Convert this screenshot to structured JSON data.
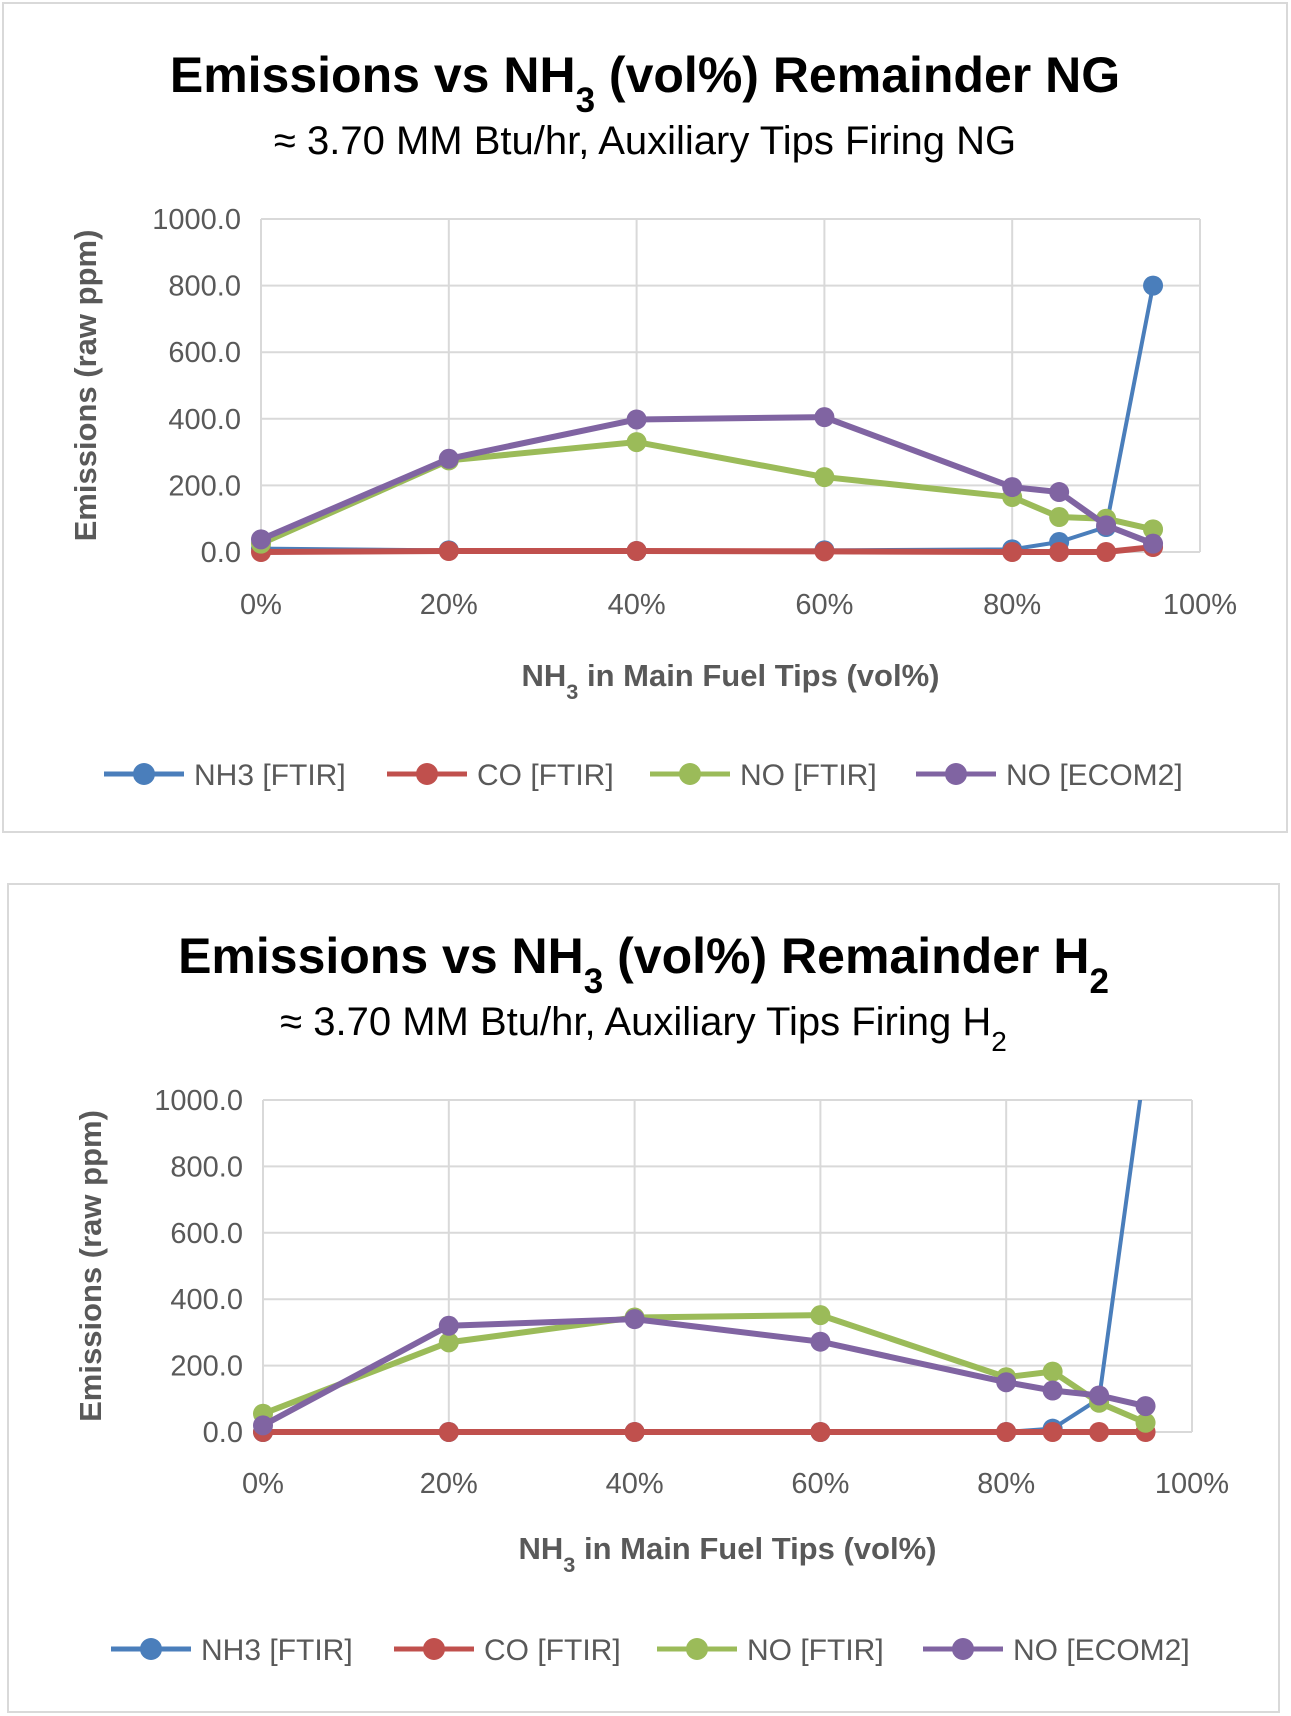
{
  "chart_data": [
    {
      "type": "line",
      "title_parts": [
        "Emissions vs NH",
        "3",
        " (vol%) Remainder NG"
      ],
      "subtitle_parts": [
        "≈ 3.70 MM Btu/hr, Auxiliary Tips Firing NG",
        ""
      ],
      "xlabel_parts": [
        "NH",
        "3",
        " in Main Fuel Tips (vol%)"
      ],
      "ylabel": "Emissions (raw ppm)",
      "xlim": [
        0,
        1
      ],
      "ylim": [
        0,
        1000
      ],
      "xticks": [
        "0%",
        "20%",
        "40%",
        "60%",
        "80%",
        "100%"
      ],
      "yticks": [
        "0.0",
        "200.0",
        "400.0",
        "600.0",
        "800.0",
        "1000.0"
      ],
      "grid": true,
      "legend_position": "bottom",
      "x": [
        0,
        0.2,
        0.4,
        0.6,
        0.8,
        0.85,
        0.9,
        0.95
      ],
      "series": [
        {
          "name": "NH3 [FTIR]",
          "color": "#4a7ebb",
          "values": [
            10,
            5,
            3,
            5,
            8,
            30,
            75,
            800
          ]
        },
        {
          "name": "CO [FTIR]",
          "color": "#c0504d",
          "values": [
            0,
            3,
            3,
            2,
            0,
            0,
            0,
            15
          ]
        },
        {
          "name": "NO [FTIR]",
          "color": "#9bbb59",
          "values": [
            25,
            275,
            330,
            225,
            165,
            105,
            100,
            68
          ]
        },
        {
          "name": "NO [ECOM2]",
          "color": "#8064a2",
          "values": [
            38,
            280,
            398,
            405,
            195,
            180,
            80,
            25
          ]
        }
      ]
    },
    {
      "type": "line",
      "title_parts": [
        "Emissions vs NH",
        "3",
        " (vol%) Remainder H",
        "2"
      ],
      "subtitle_parts": [
        "≈ 3.70 MM Btu/hr, Auxiliary Tips Firing H",
        "2"
      ],
      "xlabel_parts": [
        "NH",
        "3",
        " in Main Fuel Tips (vol%)"
      ],
      "ylabel": "Emissions (raw ppm)",
      "xlim": [
        0,
        1
      ],
      "ylim": [
        0,
        1000
      ],
      "xticks": [
        "0%",
        "20%",
        "40%",
        "60%",
        "80%",
        "100%"
      ],
      "yticks": [
        "0.0",
        "200.0",
        "400.0",
        "600.0",
        "800.0",
        "1000.0"
      ],
      "grid": true,
      "legend_position": "bottom",
      "x": [
        0,
        0.2,
        0.4,
        0.6,
        0.8,
        0.85,
        0.9,
        0.95
      ],
      "series": [
        {
          "name": "NH3 [FTIR]",
          "color": "#4a7ebb",
          "values": [
            0,
            0,
            0,
            0,
            0,
            10,
            100,
            1120
          ]
        },
        {
          "name": "CO [FTIR]",
          "color": "#c0504d",
          "values": [
            0,
            0,
            0,
            0,
            0,
            0,
            0,
            0
          ]
        },
        {
          "name": "NO [FTIR]",
          "color": "#9bbb59",
          "values": [
            55,
            270,
            345,
            352,
            165,
            182,
            88,
            28
          ]
        },
        {
          "name": "NO [ECOM2]",
          "color": "#8064a2",
          "values": [
            20,
            320,
            340,
            272,
            150,
            125,
            110,
            78
          ]
        }
      ]
    }
  ]
}
